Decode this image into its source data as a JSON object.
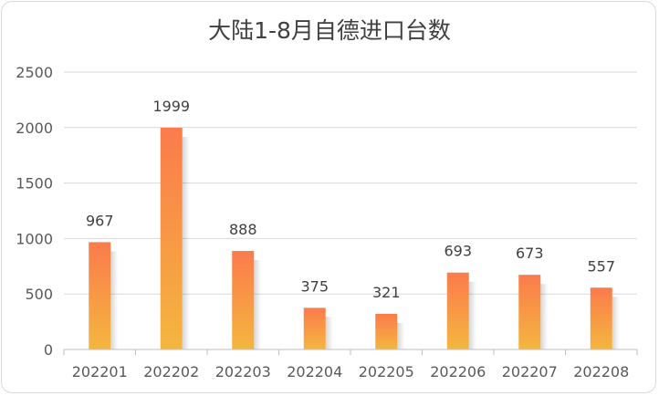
{
  "chart_data": {
    "type": "bar",
    "title": "大陆1-8月自德进口台数",
    "categories": [
      "202201",
      "202202",
      "202203",
      "202204",
      "202205",
      "202206",
      "202207",
      "202208"
    ],
    "values": [
      967,
      1999,
      888,
      375,
      321,
      693,
      673,
      557
    ],
    "ylim": [
      0,
      2500
    ],
    "yticks": [
      0,
      500,
      1000,
      1500,
      2000,
      2500
    ],
    "grid": true,
    "legend": "none",
    "bar_gradient": [
      "#f4b63f",
      "#fb7b4c"
    ],
    "xlabel": "",
    "ylabel": ""
  }
}
